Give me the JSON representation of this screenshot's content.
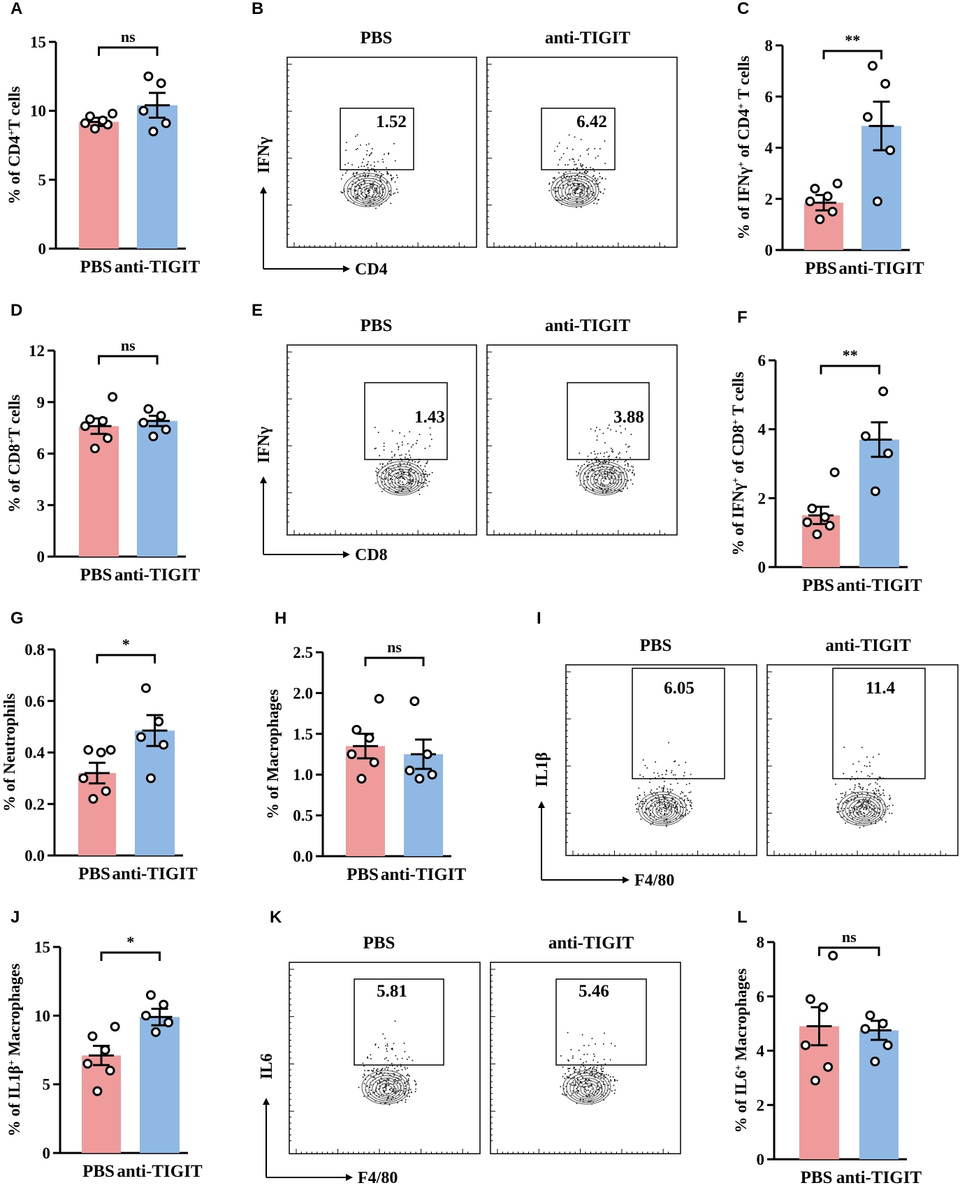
{
  "colors": {
    "pbs": "#f09b9b",
    "anti": "#8fb8e4",
    "axis": "#000000",
    "dot_fill": "#ffffff"
  },
  "chart_data": [
    {
      "panel": "A",
      "type": "bar",
      "categories": [
        "PBS",
        "anti-TIGIT"
      ],
      "ylabel": "% of  CD4+T cells",
      "ylim": [
        0,
        15
      ],
      "yticks": [
        0,
        5,
        10,
        15
      ],
      "means": [
        9.2,
        10.4
      ],
      "sem": [
        0.3,
        0.9
      ],
      "points": [
        [
          8.7,
          9.0,
          9.1,
          9.3,
          9.6,
          9.8
        ],
        [
          8.5,
          9.1,
          10.0,
          12.0,
          12.5
        ]
      ],
      "significance": "ns"
    },
    {
      "panel": "C",
      "type": "bar",
      "categories": [
        "PBS",
        "anti-TIGIT"
      ],
      "ylabel": "% of IFNγ+ of CD4+ T cells",
      "ylim": [
        0,
        8
      ],
      "yticks": [
        0,
        2,
        4,
        6,
        8
      ],
      "means": [
        1.85,
        4.85
      ],
      "sem": [
        0.3,
        0.95
      ],
      "points": [
        [
          1.2,
          1.5,
          1.9,
          2.1,
          2.4,
          2.6
        ],
        [
          1.9,
          3.9,
          5.2,
          6.5,
          7.2
        ]
      ],
      "significance": "**"
    },
    {
      "panel": "D",
      "type": "bar",
      "categories": [
        "PBS",
        "anti-TIGIT"
      ],
      "ylabel": "% of  CD8+T cells",
      "ylim": [
        0,
        12
      ],
      "yticks": [
        0,
        3,
        6,
        9,
        12
      ],
      "means": [
        7.6,
        7.9
      ],
      "sem": [
        0.45,
        0.3
      ],
      "points": [
        [
          6.3,
          6.9,
          7.6,
          7.9,
          8.0,
          9.3
        ],
        [
          7.0,
          7.4,
          7.8,
          8.2,
          8.6
        ]
      ],
      "significance": "ns"
    },
    {
      "panel": "F",
      "type": "bar",
      "categories": [
        "PBS",
        "anti-TIGIT"
      ],
      "ylabel": "% of IFNγ+ of CD8+ T cells",
      "ylim": [
        0,
        6
      ],
      "yticks": [
        0,
        2,
        4,
        6
      ],
      "means": [
        1.5,
        3.7
      ],
      "sem": [
        0.25,
        0.5
      ],
      "points": [
        [
          0.95,
          1.2,
          1.3,
          1.45,
          1.7,
          2.75
        ],
        [
          2.2,
          3.3,
          3.8,
          5.1
        ]
      ],
      "significance": "**"
    },
    {
      "panel": "G",
      "type": "bar",
      "categories": [
        "PBS",
        "anti-TIGIT"
      ],
      "ylabel": "% of Neutrophils",
      "ylim": [
        0,
        0.8
      ],
      "yticks": [
        0.0,
        0.2,
        0.4,
        0.6,
        0.8
      ],
      "ytick_labels": [
        "0.0",
        "0.2",
        "0.4",
        "0.6",
        "0.8"
      ],
      "means": [
        0.32,
        0.485
      ],
      "sem": [
        0.04,
        0.06
      ],
      "points": [
        [
          0.22,
          0.25,
          0.3,
          0.4,
          0.41,
          0.41
        ],
        [
          0.3,
          0.43,
          0.46,
          0.52,
          0.65
        ]
      ],
      "significance": "*"
    },
    {
      "panel": "H",
      "type": "bar",
      "categories": [
        "PBS",
        "anti-TIGIT"
      ],
      "ylabel": "% of  Macrophages",
      "ylim": [
        0,
        2.5
      ],
      "yticks": [
        0.0,
        0.5,
        1.0,
        1.5,
        2.0,
        2.5
      ],
      "ytick_labels": [
        "0.0",
        "0.5",
        "1.0",
        "1.5",
        "2.0",
        "2.5"
      ],
      "means": [
        1.35,
        1.25
      ],
      "sem": [
        0.15,
        0.18
      ],
      "points": [
        [
          0.95,
          1.15,
          1.25,
          1.45,
          1.55,
          1.93
        ],
        [
          0.95,
          1.0,
          1.05,
          1.25,
          1.9
        ]
      ],
      "significance": "ns"
    },
    {
      "panel": "J",
      "type": "bar",
      "categories": [
        "PBS",
        "anti-TIGIT"
      ],
      "ylabel": "% of IL1β+ Macrophages",
      "ylim": [
        0,
        15
      ],
      "yticks": [
        0,
        5,
        10,
        15
      ],
      "means": [
        7.1,
        9.9
      ],
      "sem": [
        0.7,
        0.6
      ],
      "points": [
        [
          4.5,
          6.0,
          6.5,
          7.5,
          8.5,
          9.2
        ],
        [
          8.8,
          9.5,
          10.0,
          10.8,
          11.5
        ]
      ],
      "significance": "*"
    },
    {
      "panel": "L",
      "type": "bar",
      "categories": [
        "PBS",
        "anti-TIGIT"
      ],
      "ylabel": "% of IL6+ Macrophages",
      "ylim": [
        0,
        8
      ],
      "yticks": [
        0,
        2,
        4,
        6,
        8
      ],
      "means": [
        4.9,
        4.75
      ],
      "sem": [
        0.7,
        0.35
      ],
      "points": [
        [
          2.9,
          3.4,
          4.2,
          5.6,
          5.9,
          7.5
        ],
        [
          3.6,
          4.2,
          4.8,
          5.0,
          5.3
        ]
      ],
      "significance": "ns"
    }
  ],
  "flow_panels": [
    {
      "panel": "B",
      "ylabel": "IFNγ",
      "xlabel": "CD4",
      "plots": [
        {
          "title": "PBS",
          "value": "1.52"
        },
        {
          "title": "anti-TIGIT",
          "value": "6.42"
        }
      ]
    },
    {
      "panel": "E",
      "ylabel": "IFNγ",
      "xlabel": "CD8",
      "plots": [
        {
          "title": "PBS",
          "value": "1.43"
        },
        {
          "title": "anti-TIGIT",
          "value": "3.88"
        }
      ]
    },
    {
      "panel": "I",
      "ylabel": "IL1β",
      "xlabel": "F4/80",
      "plots": [
        {
          "title": "PBS",
          "value": "6.05"
        },
        {
          "title": "anti-TIGIT",
          "value": "11.4"
        }
      ]
    },
    {
      "panel": "K",
      "ylabel": "IL6",
      "xlabel": "F4/80",
      "plots": [
        {
          "title": "PBS",
          "value": "5.81"
        },
        {
          "title": "anti-TIGIT",
          "value": "5.46"
        }
      ]
    }
  ]
}
